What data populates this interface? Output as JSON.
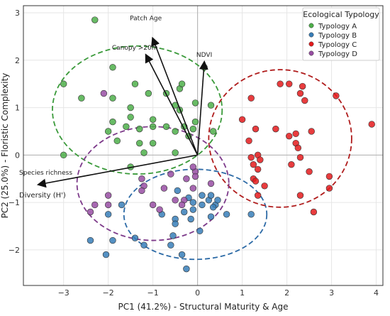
{
  "chart_data": {
    "type": "scatter",
    "xlabel": "PC1 (41.2%) - Structural Maturity & Age",
    "ylabel": "PC2 (25.0%) - Floristic Complexity",
    "xlim": [
      -3.9,
      4.15
    ],
    "ylim": [
      -2.75,
      3.15
    ],
    "xticks": [
      -3,
      -2,
      -1,
      0,
      1,
      2,
      3,
      4
    ],
    "yticks": [
      -2,
      -1,
      0,
      1,
      2,
      3
    ],
    "grid": true,
    "legend": {
      "title": "Ecological Typology",
      "placement": "top-right"
    },
    "series": [
      {
        "name": "Typology A",
        "color": "#4daf4a",
        "ellipse": {
          "cx": -1.35,
          "cy": 0.95,
          "rx": 1.9,
          "ry": 1.35,
          "color": "#3a9a3a"
        },
        "points": [
          [
            -2.3,
            2.85
          ],
          [
            -3.0,
            1.5
          ],
          [
            -2.6,
            1.2
          ],
          [
            -1.9,
            1.85
          ],
          [
            -1.4,
            1.5
          ],
          [
            -1.9,
            1.2
          ],
          [
            -1.5,
            1.0
          ],
          [
            -1.5,
            0.8
          ],
          [
            -1.1,
            1.3
          ],
          [
            -0.7,
            1.3
          ],
          [
            -0.5,
            1.05
          ],
          [
            -0.4,
            0.95
          ],
          [
            -0.4,
            1.4
          ],
          [
            -0.35,
            1.5
          ],
          [
            -0.05,
            1.1
          ],
          [
            -1.9,
            0.7
          ],
          [
            -2.0,
            0.5
          ],
          [
            -1.6,
            0.6
          ],
          [
            -1.3,
            0.55
          ],
          [
            -1.0,
            0.6
          ],
          [
            -1.0,
            0.75
          ],
          [
            -0.7,
            0.6
          ],
          [
            -0.5,
            0.5
          ],
          [
            -0.3,
            0.6
          ],
          [
            -0.1,
            0.55
          ],
          [
            -1.8,
            0.3
          ],
          [
            -1.3,
            0.25
          ],
          [
            -1.0,
            0.25
          ],
          [
            -0.2,
            0.4
          ],
          [
            -1.2,
            0.05
          ],
          [
            -0.5,
            0.05
          ],
          [
            -1.5,
            -0.25
          ],
          [
            -3.0,
            0.0
          ],
          [
            -0.05,
            0.7
          ],
          [
            0.3,
            1.05
          ],
          [
            0.15,
            1.85
          ],
          [
            0.35,
            0.5
          ]
        ]
      },
      {
        "name": "Typology B",
        "color": "#377eb8",
        "ellipse": {
          "cx": -0.05,
          "cy": -1.25,
          "rx": 1.6,
          "ry": 0.95,
          "color": "#2c6aa6"
        },
        "points": [
          [
            -0.45,
            -0.75
          ],
          [
            -0.2,
            -0.9
          ],
          [
            -0.1,
            -1.0
          ],
          [
            0.1,
            -0.85
          ],
          [
            0.25,
            -0.95
          ],
          [
            0.4,
            -1.05
          ],
          [
            0.1,
            -1.05
          ],
          [
            -0.1,
            -1.15
          ],
          [
            -0.8,
            -1.25
          ],
          [
            -0.5,
            -1.35
          ],
          [
            -0.15,
            -1.35
          ],
          [
            0.3,
            -1.3
          ],
          [
            0.65,
            -1.25
          ],
          [
            -0.5,
            -1.45
          ],
          [
            -0.55,
            -1.7
          ],
          [
            -1.4,
            -1.75
          ],
          [
            -1.2,
            -1.9
          ],
          [
            -0.6,
            -1.9
          ],
          [
            -0.35,
            -2.1
          ],
          [
            -0.25,
            -2.4
          ],
          [
            -2.0,
            -1.25
          ],
          [
            -1.9,
            -1.8
          ],
          [
            -2.05,
            -2.1
          ],
          [
            -2.4,
            -1.8
          ],
          [
            -1.7,
            -1.05
          ],
          [
            0.3,
            -0.85
          ],
          [
            0.45,
            -0.95
          ],
          [
            0.35,
            -1.1
          ],
          [
            0.05,
            -1.6
          ],
          [
            -0.3,
            -1.2
          ],
          [
            1.2,
            -1.25
          ]
        ]
      },
      {
        "name": "Typology C",
        "color": "#e41a1c",
        "ellipse": {
          "cx": 1.85,
          "cy": 0.35,
          "rx": 1.6,
          "ry": 1.45,
          "color": "#b01c1c"
        },
        "points": [
          [
            1.85,
            1.5
          ],
          [
            2.05,
            1.5
          ],
          [
            2.3,
            1.3
          ],
          [
            2.35,
            1.45
          ],
          [
            2.4,
            1.15
          ],
          [
            3.1,
            1.25
          ],
          [
            1.2,
            1.2
          ],
          [
            1.0,
            0.75
          ],
          [
            1.3,
            0.55
          ],
          [
            1.75,
            0.55
          ],
          [
            2.05,
            0.4
          ],
          [
            2.2,
            0.45
          ],
          [
            2.55,
            0.5
          ],
          [
            3.9,
            0.65
          ],
          [
            1.15,
            0.3
          ],
          [
            1.2,
            -0.05
          ],
          [
            1.35,
            0.0
          ],
          [
            1.4,
            -0.1
          ],
          [
            1.25,
            -0.2
          ],
          [
            1.35,
            -0.3
          ],
          [
            1.25,
            -0.5
          ],
          [
            1.3,
            -0.55
          ],
          [
            1.35,
            -0.85
          ],
          [
            1.5,
            -0.65
          ],
          [
            2.2,
            0.25
          ],
          [
            2.25,
            0.15
          ],
          [
            2.3,
            -0.05
          ],
          [
            2.1,
            -0.2
          ],
          [
            2.5,
            -0.35
          ],
          [
            2.95,
            -0.7
          ],
          [
            2.6,
            -1.2
          ],
          [
            2.3,
            -0.85
          ],
          [
            2.95,
            -0.45
          ]
        ]
      },
      {
        "name": "Typology D",
        "color": "#984ea3",
        "ellipse": {
          "cx": -1.0,
          "cy": -0.6,
          "rx": 1.7,
          "ry": 1.2,
          "color": "#7d3a8a"
        },
        "points": [
          [
            -2.1,
            1.3
          ],
          [
            -2.0,
            -0.85
          ],
          [
            -2.4,
            -1.2
          ],
          [
            -2.3,
            -1.05
          ],
          [
            -2.0,
            -1.05
          ],
          [
            -1.25,
            -0.5
          ],
          [
            -1.2,
            -0.65
          ],
          [
            -0.75,
            -0.7
          ],
          [
            -0.05,
            -0.35
          ],
          [
            -0.05,
            -0.45
          ],
          [
            -0.1,
            -0.7
          ],
          [
            0.3,
            -0.6
          ],
          [
            -0.3,
            -0.95
          ],
          [
            -0.35,
            -1.05
          ],
          [
            -0.1,
            -0.25
          ],
          [
            -0.6,
            -0.4
          ],
          [
            -0.5,
            -0.95
          ],
          [
            -1.0,
            -1.05
          ],
          [
            -0.85,
            -1.15
          ],
          [
            -1.25,
            -0.75
          ],
          [
            -0.25,
            -0.5
          ]
        ]
      }
    ],
    "vectors": [
      {
        "label": "Patch Age",
        "x": -1.0,
        "y": 2.45
      },
      {
        "label": "Canopy >20m",
        "x": -1.15,
        "y": 2.1
      },
      {
        "label": "NDVI",
        "x": 0.15,
        "y": 1.95
      },
      {
        "label": "Species richness",
        "x": -3.55,
        "y": -0.62
      },
      {
        "label": "Diversity (H')",
        "x": -3.55,
        "y": -0.62
      }
    ]
  }
}
